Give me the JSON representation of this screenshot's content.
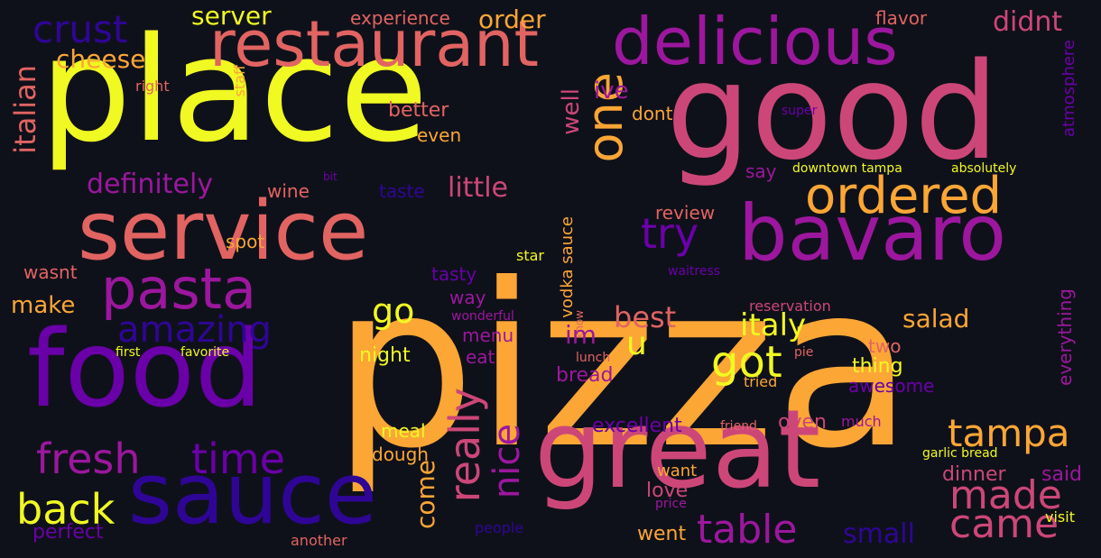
{
  "background": "#0f111a",
  "palette": {
    "yellow": "#f0f921",
    "orange": "#fca636",
    "coral": "#e16462",
    "pink": "#cc4778",
    "purple": "#9c179e",
    "violet": "#6a00a8",
    "indigo": "#2f0596"
  },
  "words": [
    {
      "text": "pizza",
      "color": "#fca636"
    },
    {
      "text": "place",
      "color": "#f0f921"
    },
    {
      "text": "good",
      "color": "#cc4778"
    },
    {
      "text": "food",
      "color": "#6a00a8"
    },
    {
      "text": "service",
      "color": "#e16462"
    },
    {
      "text": "great",
      "color": "#cc4778"
    },
    {
      "text": "sauce",
      "color": "#2f0596"
    },
    {
      "text": "restaurant",
      "color": "#e16462"
    },
    {
      "text": "delicious",
      "color": "#9c179e"
    },
    {
      "text": "bavaro",
      "color": "#9c179e"
    },
    {
      "text": "one",
      "color": "#fca636"
    },
    {
      "text": "ordered",
      "color": "#fca636"
    },
    {
      "text": "pasta",
      "color": "#9c179e"
    },
    {
      "text": "crust",
      "color": "#2f0596"
    },
    {
      "text": "italian",
      "color": "#e16462"
    },
    {
      "text": "cheese",
      "color": "#fca636"
    },
    {
      "text": "server",
      "color": "#f0f921"
    },
    {
      "text": "order",
      "color": "#fca636"
    },
    {
      "text": "experience",
      "color": "#e16462"
    },
    {
      "text": "flavor",
      "color": "#e16462"
    },
    {
      "text": "didnt",
      "color": "#cc4778"
    },
    {
      "text": "atmosphere",
      "color": "#6a00a8"
    },
    {
      "text": "right",
      "color": "#e16462"
    },
    {
      "text": "staff",
      "color": "#fca636"
    },
    {
      "text": "well",
      "color": "#cc4778"
    },
    {
      "text": "ive",
      "color": "#9c179e"
    },
    {
      "text": "super",
      "color": "#6a00a8"
    },
    {
      "text": "better",
      "color": "#e16462"
    },
    {
      "text": "dont",
      "color": "#fca636"
    },
    {
      "text": "even",
      "color": "#fca636"
    },
    {
      "text": "definitely",
      "color": "#9c179e"
    },
    {
      "text": "bit",
      "color": "#6a00a8"
    },
    {
      "text": "wine",
      "color": "#e16462"
    },
    {
      "text": "taste",
      "color": "#2f0596"
    },
    {
      "text": "little",
      "color": "#cc4778"
    },
    {
      "text": "say",
      "color": "#9c179e"
    },
    {
      "text": "downtown tampa",
      "color": "#f0f921"
    },
    {
      "text": "absolutely",
      "color": "#f0f921"
    },
    {
      "text": "review",
      "color": "#e16462"
    },
    {
      "text": "try",
      "color": "#6a00a8"
    },
    {
      "text": "spot",
      "color": "#fca636"
    },
    {
      "text": "vodka sauce",
      "color": "#fca636"
    },
    {
      "text": "wasnt",
      "color": "#e16462"
    },
    {
      "text": "tasty",
      "color": "#6a00a8"
    },
    {
      "text": "star",
      "color": "#f0f921"
    },
    {
      "text": "waitress",
      "color": "#6a00a8"
    },
    {
      "text": "make",
      "color": "#fca636"
    },
    {
      "text": "way",
      "color": "#9c179e"
    },
    {
      "text": "go",
      "color": "#f0f921"
    },
    {
      "text": "amazing",
      "color": "#2f0596"
    },
    {
      "text": "reservation",
      "color": "#cc4778"
    },
    {
      "text": "wonderful",
      "color": "#9c179e"
    },
    {
      "text": "know",
      "color": "#e16462"
    },
    {
      "text": "best",
      "color": "#e16462"
    },
    {
      "text": "italy",
      "color": "#f0f921"
    },
    {
      "text": "salad",
      "color": "#fca636"
    },
    {
      "text": "got",
      "color": "#f0f921"
    },
    {
      "text": "im",
      "color": "#9c179e"
    },
    {
      "text": "menu",
      "color": "#9c179e"
    },
    {
      "text": "u",
      "color": "#f0f921"
    },
    {
      "text": "first",
      "color": "#f0f921"
    },
    {
      "text": "favorite",
      "color": "#f0f921"
    },
    {
      "text": "night",
      "color": "#f0f921"
    },
    {
      "text": "eat",
      "color": "#9c179e"
    },
    {
      "text": "lunch",
      "color": "#e16462"
    },
    {
      "text": "pie",
      "color": "#e16462"
    },
    {
      "text": "two",
      "color": "#e16462"
    },
    {
      "text": "everything",
      "color": "#9c179e"
    },
    {
      "text": "bread",
      "color": "#9c179e"
    },
    {
      "text": "tried",
      "color": "#fca636"
    },
    {
      "text": "thing",
      "color": "#f0f921"
    },
    {
      "text": "awesome",
      "color": "#6a00a8"
    },
    {
      "text": "fresh",
      "color": "#9c179e"
    },
    {
      "text": "time",
      "color": "#6a00a8"
    },
    {
      "text": "meal",
      "color": "#f0f921"
    },
    {
      "text": "dough",
      "color": "#fca636"
    },
    {
      "text": "really",
      "color": "#cc4778"
    },
    {
      "text": "excellent",
      "color": "#6a00a8"
    },
    {
      "text": "friend",
      "color": "#e16462"
    },
    {
      "text": "oven",
      "color": "#cc4778"
    },
    {
      "text": "much",
      "color": "#9c179e"
    },
    {
      "text": "tampa",
      "color": "#fca636"
    },
    {
      "text": "garlic bread",
      "color": "#f0f921"
    },
    {
      "text": "nice",
      "color": "#9c179e"
    },
    {
      "text": "come",
      "color": "#fca636"
    },
    {
      "text": "made",
      "color": "#cc4778"
    },
    {
      "text": "dinner",
      "color": "#cc4778"
    },
    {
      "text": "said",
      "color": "#9c179e"
    },
    {
      "text": "want",
      "color": "#fca636"
    },
    {
      "text": "love",
      "color": "#cc4778"
    },
    {
      "text": "price",
      "color": "#9c179e"
    },
    {
      "text": "back",
      "color": "#f0f921"
    },
    {
      "text": "table",
      "color": "#9c179e"
    },
    {
      "text": "came",
      "color": "#cc4778"
    },
    {
      "text": "visit",
      "color": "#f0f921"
    },
    {
      "text": "perfect",
      "color": "#6a00a8"
    },
    {
      "text": "people",
      "color": "#2f0596"
    },
    {
      "text": "another",
      "color": "#e16462"
    },
    {
      "text": "went",
      "color": "#fca636"
    },
    {
      "text": "small",
      "color": "#2f0596"
    }
  ]
}
